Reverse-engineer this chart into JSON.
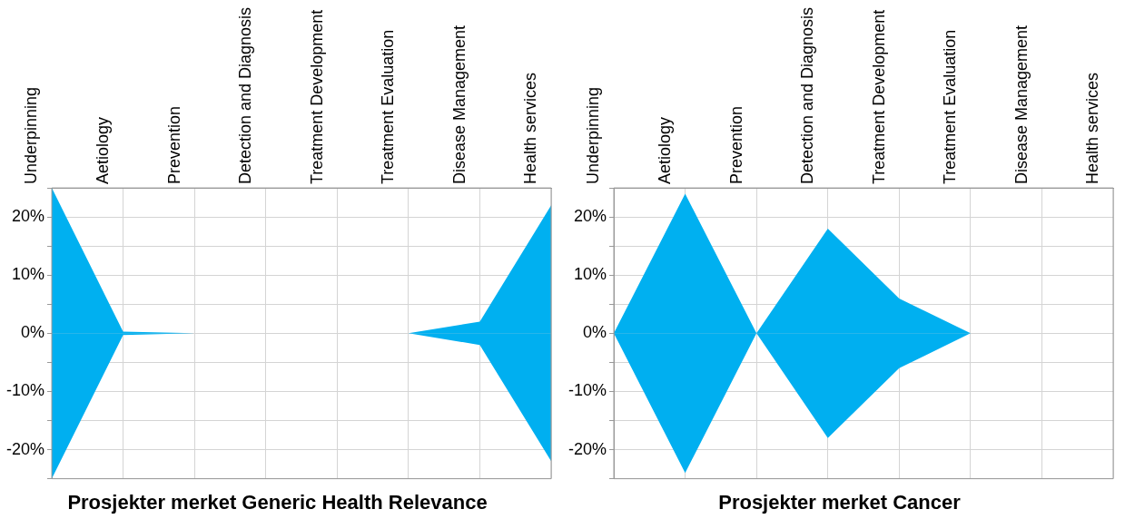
{
  "chart_data": [
    {
      "type": "area",
      "title": "Prosjekter merket Generic Health Relevance",
      "categories": [
        "Underpinning",
        "Aetiology",
        "Prevention",
        "Detection and Diagnosis",
        "Treatment Development",
        "Treatment Evaluation",
        "Disease Management",
        "Health services"
      ],
      "series": [
        {
          "color": "#00b0f0",
          "values": [
            25,
            0.3,
            0,
            0,
            0,
            0,
            2,
            22
          ]
        },
        {
          "color": "#00aff0",
          "values": [
            -25,
            -0.3,
            0,
            0,
            0,
            0,
            -2,
            -22
          ]
        }
      ],
      "ylim": [
        -25,
        25
      ],
      "yticks": [
        {
          "value": -25,
          "label": null
        },
        {
          "value": -20,
          "label": "-20%"
        },
        {
          "value": -15,
          "label": null
        },
        {
          "value": -10,
          "label": "-10%"
        },
        {
          "value": -5,
          "label": null
        },
        {
          "value": 0,
          "label": "0%"
        },
        {
          "value": 5,
          "label": null
        },
        {
          "value": 10,
          "label": "10%"
        },
        {
          "value": 15,
          "label": null
        },
        {
          "value": 20,
          "label": "20%"
        },
        {
          "value": 25,
          "label": null
        }
      ],
      "grid": true,
      "marker": "none"
    },
    {
      "type": "area",
      "title": "Prosjekter merket Cancer",
      "categories": [
        "Underpinning",
        "Aetiology",
        "Prevention",
        "Detection and Diagnosis",
        "Treatment Development",
        "Treatment Evaluation",
        "Disease Management",
        "Health services"
      ],
      "series": [
        {
          "color": "#00b0f0",
          "values": [
            0,
            24,
            0,
            18,
            6,
            0,
            0,
            0
          ]
        },
        {
          "color": "#00aff0",
          "values": [
            0,
            -24,
            0,
            -18,
            -6,
            0,
            0,
            0
          ]
        }
      ],
      "ylim": [
        -25,
        25
      ],
      "yticks": [
        {
          "value": -25,
          "label": null
        },
        {
          "value": -20,
          "label": "-20%"
        },
        {
          "value": -15,
          "label": null
        },
        {
          "value": -10,
          "label": "-10%"
        },
        {
          "value": -5,
          "label": null
        },
        {
          "value": 0,
          "label": "0%"
        },
        {
          "value": 5,
          "label": null
        },
        {
          "value": 10,
          "label": "10%"
        },
        {
          "value": 15,
          "label": null
        },
        {
          "value": 20,
          "label": "20%"
        },
        {
          "value": 25,
          "label": null
        }
      ],
      "grid": true,
      "marker": "none"
    }
  ]
}
